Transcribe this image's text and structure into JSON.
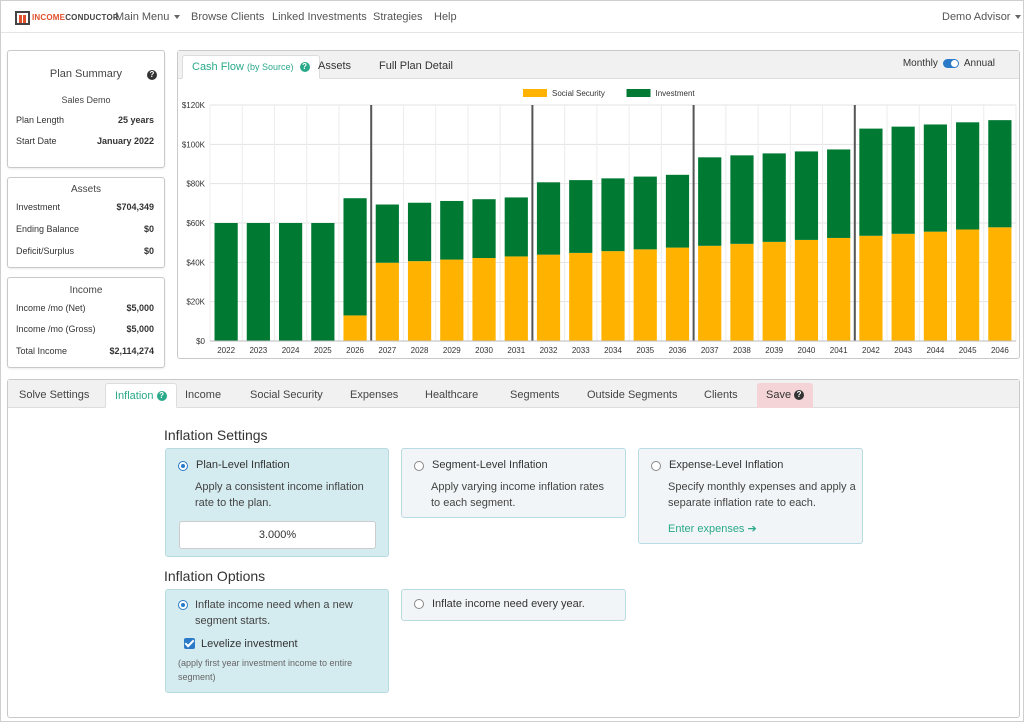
{
  "brand": {
    "logo_income": "INCOME",
    "logo_conductor": "CONDUCTOR"
  },
  "nav": {
    "main_menu": "Main Menu",
    "browse_clients": "Browse Clients",
    "linked_investments": "Linked Investments",
    "strategies": "Strategies",
    "help": "Help",
    "user": "Demo Advisor"
  },
  "plan_summary": {
    "title": "Plan Summary",
    "plan_name": "Sales Demo",
    "plan_length_label": "Plan Length",
    "plan_length_value": "25 years",
    "start_date_label": "Start Date",
    "start_date_value": "January 2022"
  },
  "assets": {
    "title": "Assets",
    "rows": [
      {
        "label": "Investment",
        "value": "$704,349"
      },
      {
        "label": "Ending Balance",
        "value": "$0"
      },
      {
        "label": "Deficit/Surplus",
        "value": "$0"
      }
    ]
  },
  "income": {
    "title": "Income",
    "rows": [
      {
        "label": "Income /mo (Net)",
        "value": "$5,000"
      },
      {
        "label": "Income /mo (Gross)",
        "value": "$5,000"
      },
      {
        "label": "Total Income",
        "value": "$2,114,274"
      }
    ]
  },
  "chart_tabs": {
    "cash_flow": "Cash Flow",
    "cash_flow_sub": "(by Source)",
    "assets": "Assets",
    "full_plan": "Full Plan Detail",
    "monthly": "Monthly",
    "annual": "Annual"
  },
  "chart_data": {
    "type": "bar",
    "stacked": true,
    "categories": [
      "2022",
      "2023",
      "2024",
      "2025",
      "2026",
      "2027",
      "2028",
      "2029",
      "2030",
      "2031",
      "2032",
      "2033",
      "2034",
      "2035",
      "2036",
      "2037",
      "2038",
      "2039",
      "2040",
      "2041",
      "2042",
      "2043",
      "2044",
      "2045",
      "2046"
    ],
    "series": [
      {
        "name": "Social Security",
        "color": "#ffb300",
        "values": [
          0,
          0,
          0,
          0,
          13000,
          39800,
          40600,
          41400,
          42200,
          43000,
          43900,
          44800,
          45700,
          46600,
          47500,
          48400,
          49400,
          50400,
          51400,
          52400,
          53500,
          54500,
          55600,
          56700,
          57800
        ]
      },
      {
        "name": "Investment",
        "color": "#007a33",
        "values": [
          60000,
          60000,
          60000,
          60000,
          59600,
          29600,
          29700,
          29800,
          29900,
          30000,
          36800,
          37000,
          37000,
          37000,
          37000,
          45000,
          45000,
          45000,
          45000,
          45000,
          54500,
          54500,
          54500,
          54500,
          54500
        ]
      }
    ],
    "ylim": [
      0,
      120000
    ],
    "yticks": [
      "$0",
      "$20K",
      "$40K",
      "$60K",
      "$80K",
      "$100K",
      "$120K"
    ],
    "segment_dividers_after": [
      "2026",
      "2031",
      "2036",
      "2041"
    ],
    "legend": "top-center",
    "grid": true
  },
  "bottom_tabs": {
    "solve_settings": "Solve Settings",
    "inflation": "Inflation",
    "income": "Income",
    "social_security": "Social Security",
    "expenses": "Expenses",
    "healthcare": "Healthcare",
    "segments": "Segments",
    "outside_segments": "Outside Segments",
    "clients": "Clients",
    "save": "Save"
  },
  "inflation_settings": {
    "heading": "Inflation Settings",
    "plan_level": {
      "title": "Plan-Level Inflation",
      "desc1": "Apply a consistent income inflation",
      "desc2": "rate to the plan.",
      "rate": "3.000%"
    },
    "segment_level": {
      "title": "Segment-Level Inflation",
      "desc1": "Apply varying income inflation rates",
      "desc2": "to each segment."
    },
    "expense_level": {
      "title": "Expense-Level Inflation",
      "desc1": "Specify monthly expenses and apply a",
      "desc2": "separate inflation rate to each.",
      "link": "Enter expenses"
    }
  },
  "inflation_options": {
    "heading": "Inflation Options",
    "new_segment": {
      "line1": "Inflate income need when a new",
      "line2": "segment starts.",
      "levelize": "Levelize investment",
      "note1": "(apply first year investment income to entire",
      "note2": "segment)"
    },
    "every_year": {
      "title": "Inflate income need every year."
    }
  }
}
